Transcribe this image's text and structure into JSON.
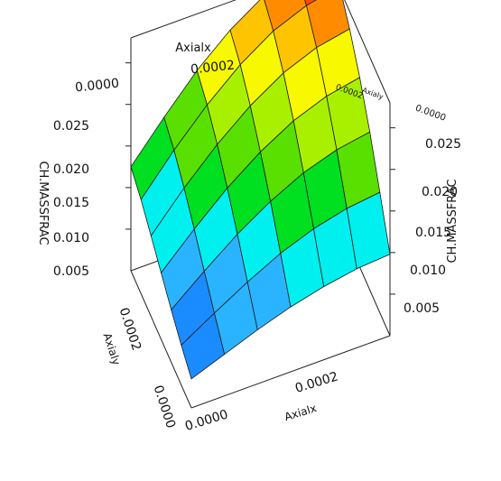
{
  "chart_data": {
    "type": "surface",
    "title": "",
    "x_axis": {
      "label": "Axialx",
      "ticks": [
        "0.0000",
        "0.0002"
      ]
    },
    "y_axis": {
      "label": "Axialy",
      "ticks": [
        "0.0000",
        "0.0002"
      ]
    },
    "z_axis": {
      "label": "CH.MASSFRAC",
      "ticks": [
        "0.005",
        "0.010",
        "0.015",
        "0.020",
        "0.025"
      ],
      "range": [
        0.0,
        0.028
      ]
    },
    "x_values": [
      0.0,
      5e-05,
      0.0001,
      0.00015,
      0.0002,
      0.00025,
      0.0003
    ],
    "y_values": [
      0.0,
      5e-05,
      0.0001,
      0.00015,
      0.0002,
      0.00025,
      0.0003
    ],
    "z_values": [
      [
        0.0035,
        0.0048,
        0.0063,
        0.008,
        0.0097,
        0.0113,
        0.0125
      ],
      [
        0.005,
        0.0072,
        0.0095,
        0.0118,
        0.014,
        0.0158,
        0.017
      ],
      [
        0.0065,
        0.0095,
        0.0125,
        0.0153,
        0.0178,
        0.0198,
        0.0212
      ],
      [
        0.0078,
        0.0115,
        0.015,
        0.0182,
        0.021,
        0.0232,
        0.0246
      ],
      [
        0.0088,
        0.013,
        0.017,
        0.0205,
        0.0235,
        0.0258,
        0.0272
      ],
      [
        0.0095,
        0.014,
        0.0183,
        0.022,
        0.0251,
        0.0274,
        0.0288
      ],
      [
        0.0098,
        0.0145,
        0.019,
        0.0228,
        0.0259,
        0.0283,
        0.0296
      ]
    ],
    "color_levels": [
      {
        "max": 0.004,
        "color": "#1050ff"
      },
      {
        "max": 0.007,
        "color": "#1a8cff"
      },
      {
        "max": 0.01,
        "color": "#2ab4ff"
      },
      {
        "max": 0.013,
        "color": "#00f0f0"
      },
      {
        "max": 0.016,
        "color": "#00e020"
      },
      {
        "max": 0.019,
        "color": "#5ae000"
      },
      {
        "max": 0.022,
        "color": "#a8f000"
      },
      {
        "max": 0.0245,
        "color": "#f8f800"
      },
      {
        "max": 0.0265,
        "color": "#ffc400"
      },
      {
        "max": 0.028,
        "color": "#ff8c00"
      },
      {
        "max": 1.0,
        "color": "#ff4a00"
      }
    ],
    "grid": false
  }
}
